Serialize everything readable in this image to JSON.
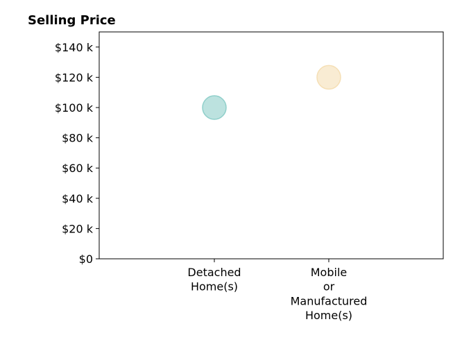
{
  "chart_data": {
    "type": "scatter",
    "title": "Selling Price",
    "xlabel": "",
    "ylabel": "",
    "categories": [
      [
        "Detached",
        "Home(s)"
      ],
      [
        "Mobile",
        "or",
        "Manufactured",
        "Home(s)"
      ]
    ],
    "points": [
      {
        "category_index": 0,
        "value": 100000,
        "color": "#8fcfca"
      },
      {
        "category_index": 1,
        "value": 120000,
        "color": "#f5dfb5"
      }
    ],
    "ylim": [
      0,
      150000
    ],
    "yticks": [
      {
        "value": 0,
        "label": "$0"
      },
      {
        "value": 20000,
        "label": "$20 k"
      },
      {
        "value": 40000,
        "label": "$40 k"
      },
      {
        "value": 60000,
        "label": "$60 k"
      },
      {
        "value": 80000,
        "label": "$80 k"
      },
      {
        "value": 100000,
        "label": "$100 k"
      },
      {
        "value": 120000,
        "label": "$120 k"
      },
      {
        "value": 140000,
        "label": "$140 k"
      }
    ],
    "grid": false,
    "legend": "none"
  }
}
